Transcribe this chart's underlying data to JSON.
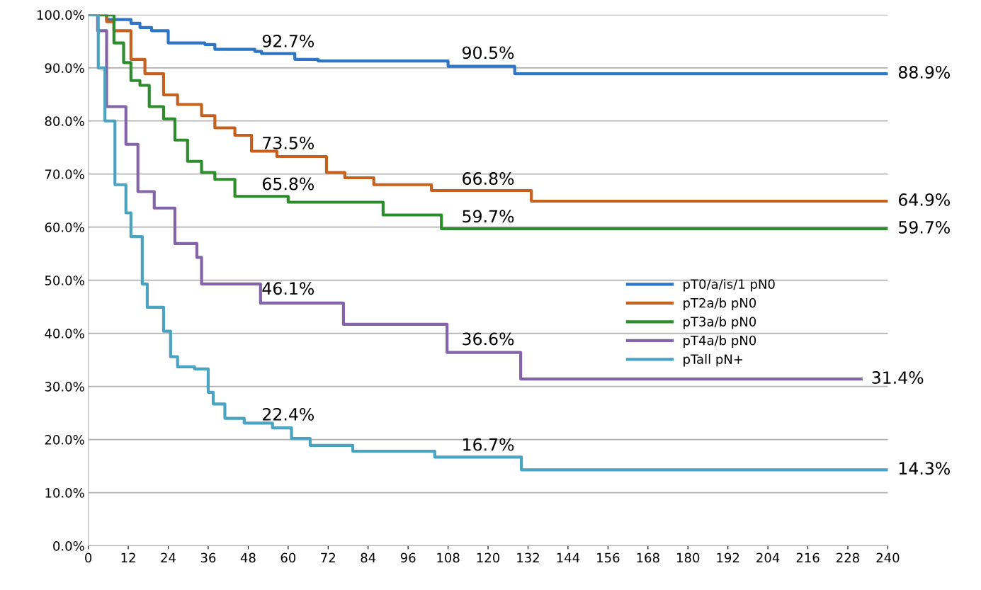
{
  "chart_data": {
    "type": "step",
    "xlim": [
      0,
      240
    ],
    "ylim": [
      0,
      100
    ],
    "xticks": [
      0,
      12,
      24,
      36,
      48,
      60,
      72,
      84,
      96,
      108,
      120,
      132,
      144,
      156,
      168,
      180,
      192,
      204,
      216,
      228,
      240
    ],
    "yticks": [
      {
        "value": 0,
        "label": "0.0%"
      },
      {
        "value": 10,
        "label": "10.0%"
      },
      {
        "value": 20,
        "label": "20.0%"
      },
      {
        "value": 30,
        "label": "30.0%"
      },
      {
        "value": 40,
        "label": "40.0%"
      },
      {
        "value": 50,
        "label": "50.0%"
      },
      {
        "value": 60,
        "label": "60.0%"
      },
      {
        "value": 70,
        "label": "70.0%"
      },
      {
        "value": 80,
        "label": "80.0%"
      },
      {
        "value": 90,
        "label": "90.0%"
      },
      {
        "value": 100,
        "label": "100.0%"
      }
    ],
    "grid": "y",
    "legend": "right",
    "line_style": "solid",
    "marker": "none",
    "series": [
      {
        "name": "pT0/a/is/1 pN0",
        "color": "#2e75c5",
        "x": [
          0,
          5.5,
          12.8,
          15.5,
          19,
          24,
          35,
          38,
          50,
          52,
          62,
          69,
          108,
          128,
          240
        ],
        "values": [
          100,
          99.1,
          98.4,
          97.6,
          97,
          94.7,
          94.4,
          93.5,
          93.1,
          92.7,
          91.6,
          91.3,
          90.3,
          88.9,
          88.9
        ]
      },
      {
        "name": "pT2a/b pN0",
        "color": "#c5601f",
        "x": [
          0,
          5.5,
          7.7,
          12.8,
          17,
          22.6,
          26.8,
          34,
          38,
          44,
          49,
          56.6,
          71.5,
          77,
          85.7,
          103,
          133,
          240
        ],
        "values": [
          100,
          98.7,
          97,
          91.6,
          88.9,
          84.9,
          83.1,
          81,
          78.7,
          77.3,
          74.3,
          73.3,
          70.3,
          69.3,
          68,
          66.9,
          64.9,
          64.9
        ]
      },
      {
        "name": "pT3a/b pN0",
        "color": "#2e8b2e",
        "x": [
          0,
          7.7,
          10.6,
          12.8,
          15.5,
          18.3,
          22.6,
          26,
          29.8,
          34,
          38,
          44,
          60,
          88.5,
          106,
          240
        ],
        "values": [
          100,
          94.7,
          91,
          87.6,
          86.7,
          82.7,
          80.4,
          76.4,
          72.4,
          70.3,
          69,
          65.8,
          64.7,
          62.3,
          59.7,
          59.7
        ]
      },
      {
        "name": "pT4a/b pN0",
        "color": "#8464a8",
        "x": [
          0,
          2.8,
          5.5,
          11.3,
          14.9,
          19.8,
          26,
          32.6,
          34,
          51.7,
          76.6,
          107.7,
          129.8,
          232
        ],
        "values": [
          100,
          97,
          82.7,
          75.6,
          66.7,
          63.6,
          56.9,
          54.3,
          49.3,
          45.7,
          41.7,
          36.4,
          31.4,
          31.4
        ]
      },
      {
        "name": "pTall pN+",
        "color": "#4aa3c0",
        "x": [
          0,
          3,
          5,
          8,
          11.3,
          12.8,
          16.2,
          17.7,
          22.6,
          24.7,
          26.8,
          31.9,
          36,
          37.5,
          41,
          46.8,
          55.3,
          61,
          66.6,
          79.4,
          104,
          130,
          240
        ],
        "values": [
          100,
          90,
          80,
          68,
          62.7,
          58.2,
          49.3,
          44.9,
          40.4,
          35.6,
          33.7,
          33.3,
          28.9,
          26.7,
          24,
          23.1,
          22.2,
          20.2,
          18.9,
          17.8,
          16.7,
          14.3,
          14.3
        ]
      }
    ],
    "annotations": [
      {
        "text": "92.7%",
        "x": 60,
        "y": 92.7
      },
      {
        "text": "90.5%",
        "x": 120,
        "y": 90.5
      },
      {
        "text": "88.9%",
        "x": 240,
        "y": 88.9
      },
      {
        "text": "73.5%",
        "x": 60,
        "y": 73.5
      },
      {
        "text": "66.8%",
        "x": 120,
        "y": 66.8
      },
      {
        "text": "64.9%",
        "x": 240,
        "y": 64.9
      },
      {
        "text": "65.8%",
        "x": 60,
        "y": 65.8
      },
      {
        "text": "59.7%",
        "x": 120,
        "y": 59.7
      },
      {
        "text": "59.7%",
        "x": 240,
        "y": 59.7
      },
      {
        "text": "46.1%",
        "x": 60,
        "y": 46.1
      },
      {
        "text": "36.6%",
        "x": 120,
        "y": 36.6
      },
      {
        "text": "31.4%",
        "x": 232,
        "y": 31.4
      },
      {
        "text": "22.4%",
        "x": 60,
        "y": 22.4
      },
      {
        "text": "16.7%",
        "x": 120,
        "y": 16.7
      },
      {
        "text": "14.3%",
        "x": 240,
        "y": 14.3
      }
    ]
  }
}
